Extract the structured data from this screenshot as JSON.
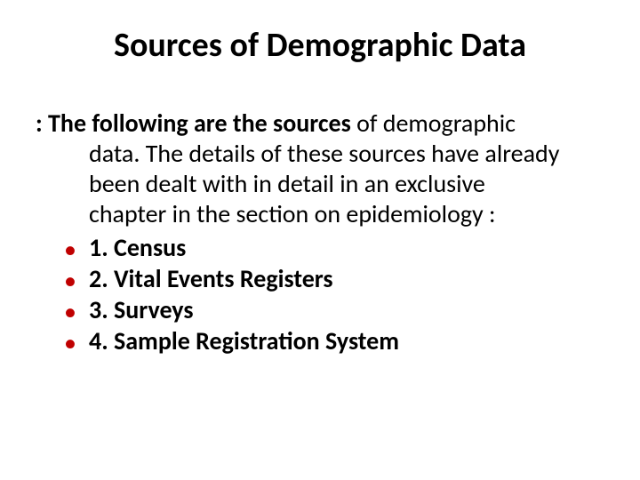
{
  "slide": {
    "title": "Sources of Demographic Data",
    "title_fontsize": 38,
    "title_color": "#000000",
    "intro_prefix": ": The following are the sources",
    "intro_rest_line1": " of demographic",
    "intro_line2": "data. The details of these sources have already",
    "intro_line3": "been dealt with in detail in an exclusive",
    "intro_line4": "chapter in the section on epidemiology :",
    "body_fontsize": 28,
    "body_color": "#000000",
    "bullet_char": "•",
    "bullet_color": "#c00000",
    "items": [
      {
        "label": "1. Census"
      },
      {
        "label": "2. Vital Events Registers"
      },
      {
        "label": "3. Surveys"
      },
      {
        "label": "4. Sample Registration System"
      }
    ],
    "background_color": "#ffffff"
  }
}
